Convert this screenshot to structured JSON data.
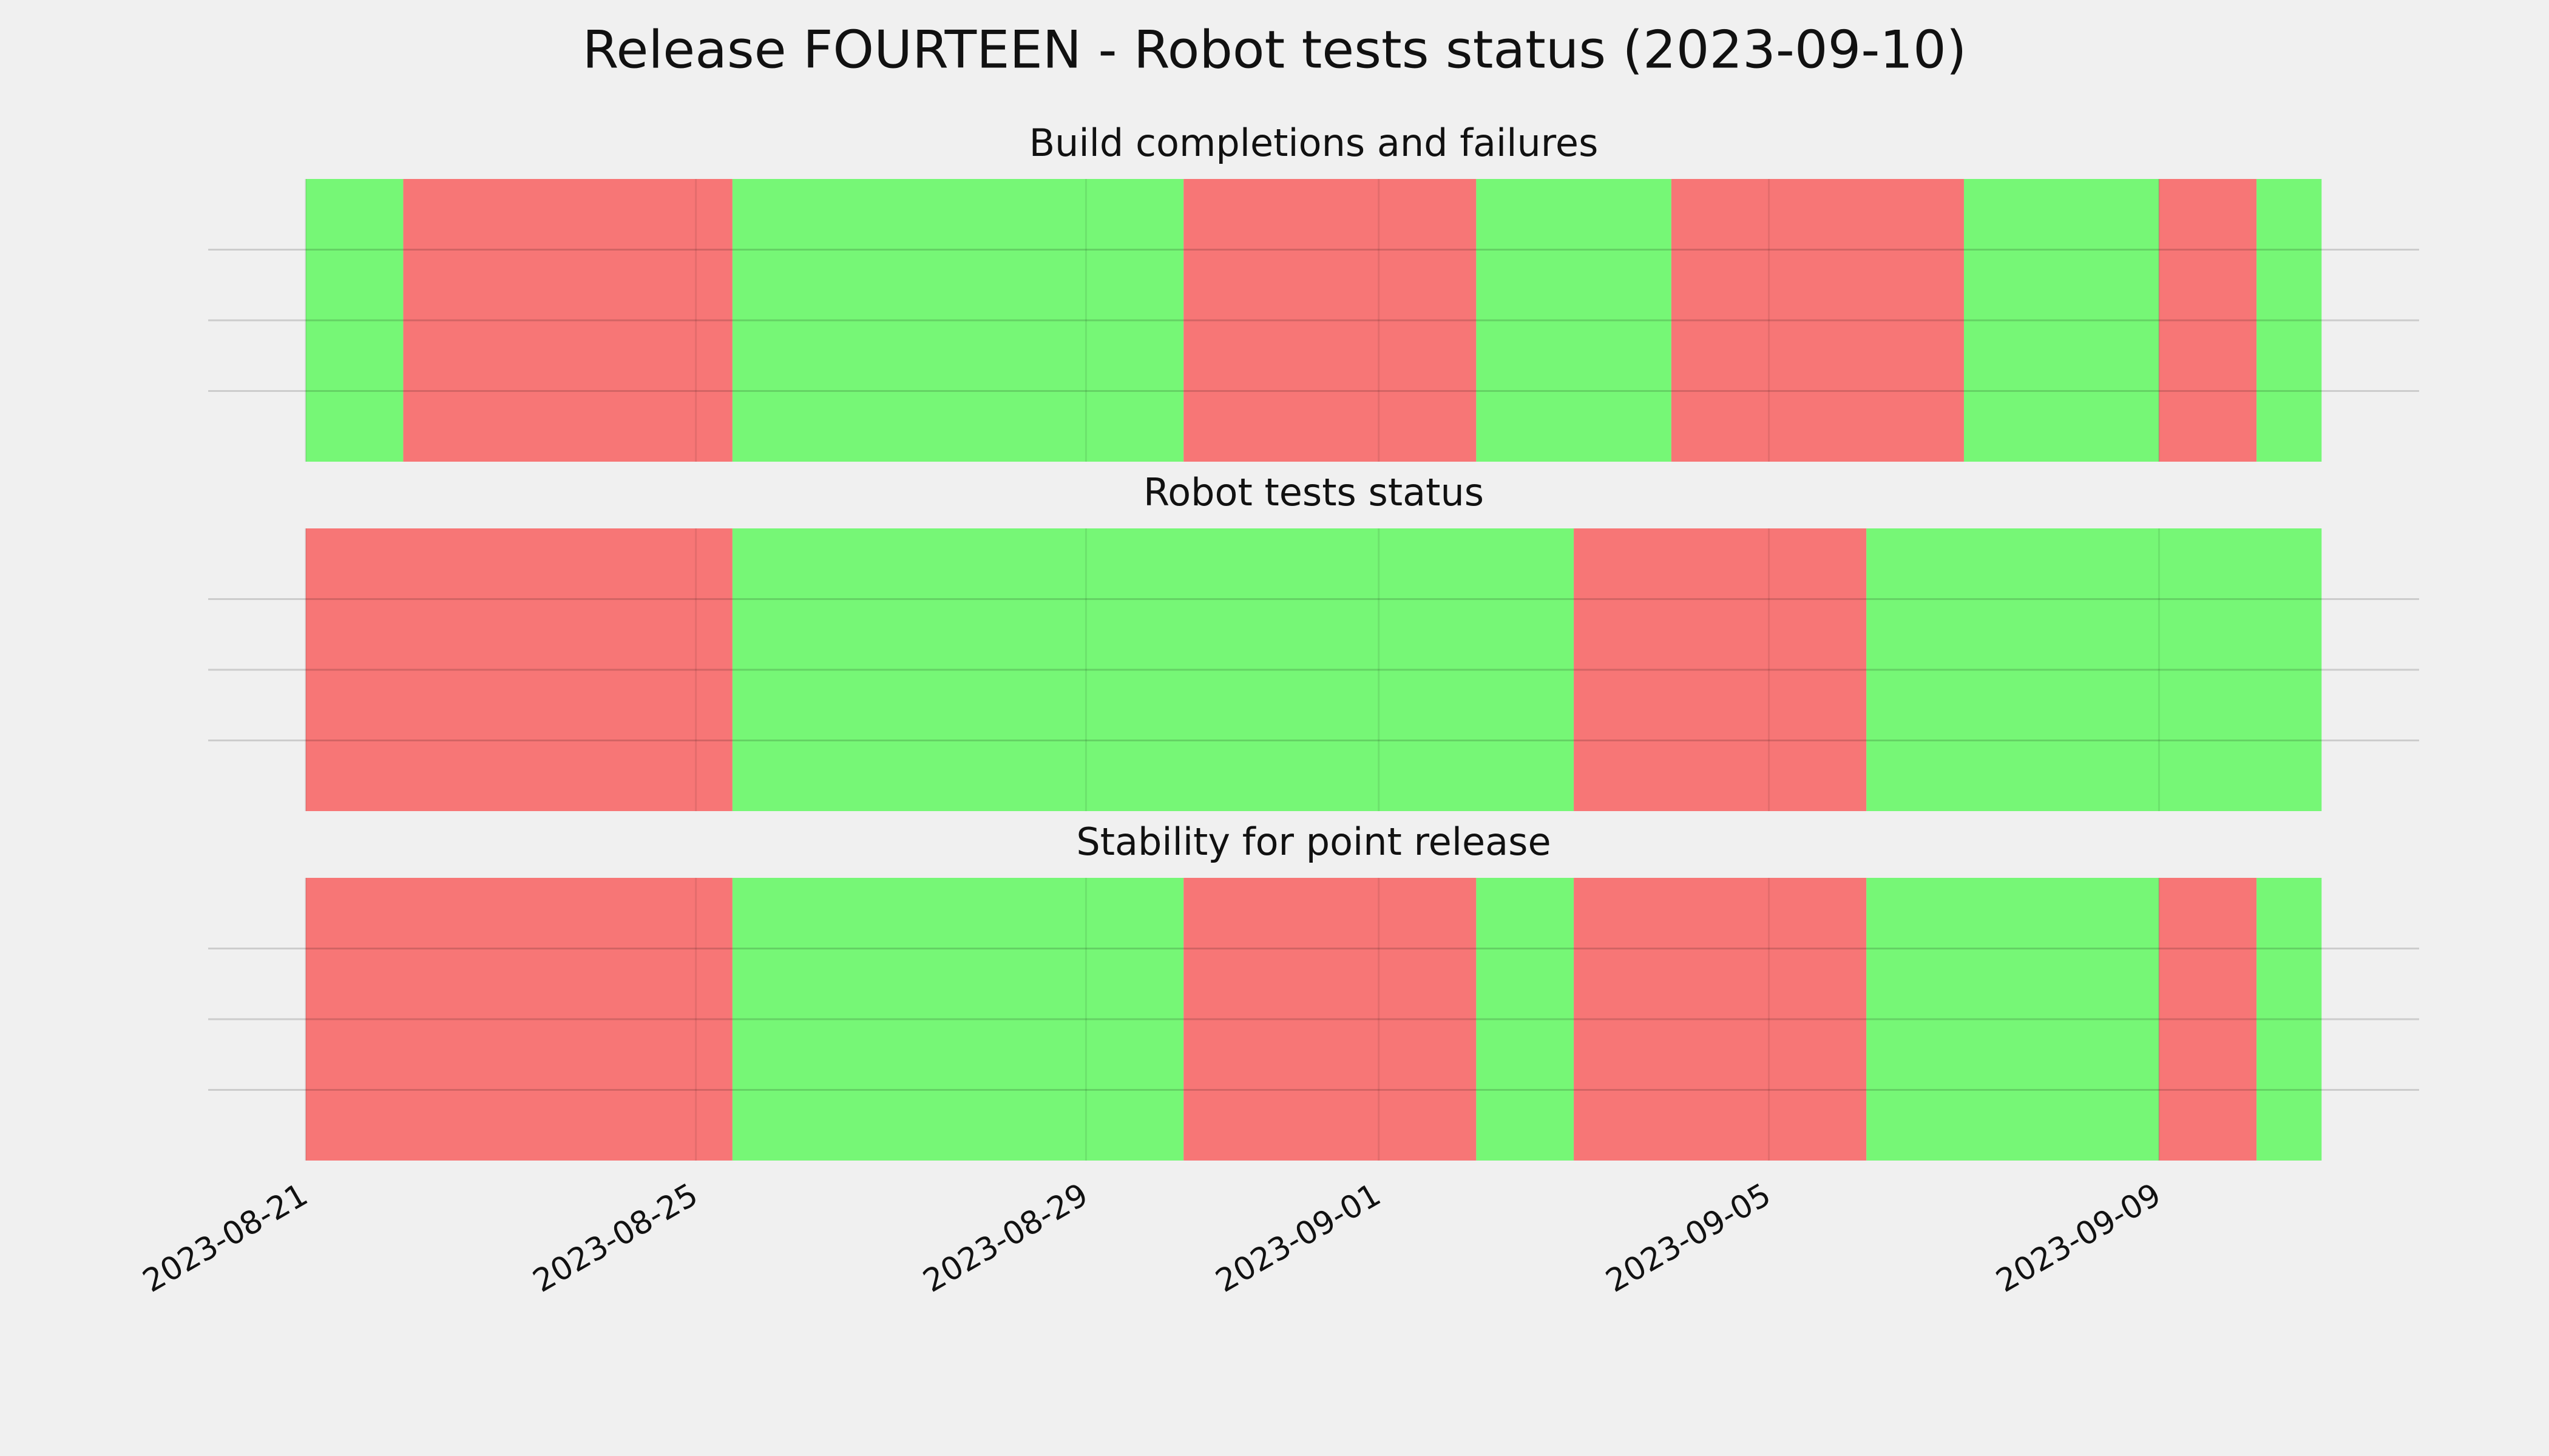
{
  "title": "Release FOURTEEN - Robot tests status (2023-09-10)",
  "chart_data": [
    {
      "type": "span",
      "title": "Build completions and failures",
      "xlim": [
        "2023-08-20T00:00",
        "2023-09-11T16:00"
      ],
      "ylim": [
        0,
        1
      ],
      "yticks": [
        0.25,
        0.5,
        0.75
      ],
      "grid": true,
      "spans": [
        {
          "start": "2023-08-21T00:00",
          "end": "2023-08-22T00:00",
          "color": "#76f776"
        },
        {
          "start": "2023-08-22T00:00",
          "end": "2023-08-25T09:00",
          "color": "#f77676"
        },
        {
          "start": "2023-08-25T09:00",
          "end": "2023-08-30T00:00",
          "color": "#76f776"
        },
        {
          "start": "2023-08-30T00:00",
          "end": "2023-09-02T00:00",
          "color": "#f77676"
        },
        {
          "start": "2023-09-02T00:00",
          "end": "2023-09-04T00:00",
          "color": "#76f776"
        },
        {
          "start": "2023-09-04T00:00",
          "end": "2023-09-07T00:00",
          "color": "#f77676"
        },
        {
          "start": "2023-09-07T00:00",
          "end": "2023-09-09T00:00",
          "color": "#76f776"
        },
        {
          "start": "2023-09-09T00:00",
          "end": "2023-09-10T00:00",
          "color": "#f77676"
        },
        {
          "start": "2023-09-10T00:00",
          "end": "2023-09-10T16:00",
          "color": "#76f776"
        }
      ]
    },
    {
      "type": "span",
      "title": "Robot tests status",
      "xlim": [
        "2023-08-20T00:00",
        "2023-09-11T16:00"
      ],
      "ylim": [
        0,
        1
      ],
      "yticks": [
        0.25,
        0.5,
        0.75
      ],
      "grid": true,
      "spans": [
        {
          "start": "2023-08-21T00:00",
          "end": "2023-08-25T09:00",
          "color": "#f77676"
        },
        {
          "start": "2023-08-25T09:00",
          "end": "2023-09-03T00:00",
          "color": "#76f776"
        },
        {
          "start": "2023-09-03T00:00",
          "end": "2023-09-06T00:00",
          "color": "#f77676"
        },
        {
          "start": "2023-09-06T00:00",
          "end": "2023-09-10T16:00",
          "color": "#76f776"
        }
      ]
    },
    {
      "type": "span",
      "title": "Stability for point release",
      "xlim": [
        "2023-08-20T00:00",
        "2023-09-11T16:00"
      ],
      "ylim": [
        0,
        1
      ],
      "yticks": [
        0.25,
        0.5,
        0.75
      ],
      "grid": true,
      "xticks": [
        "2023-08-21",
        "2023-08-25",
        "2023-08-29",
        "2023-09-01",
        "2023-09-05",
        "2023-09-09"
      ],
      "spans": [
        {
          "start": "2023-08-21T00:00",
          "end": "2023-08-25T09:00",
          "color": "#f77676"
        },
        {
          "start": "2023-08-25T09:00",
          "end": "2023-08-30T00:00",
          "color": "#76f776"
        },
        {
          "start": "2023-08-30T00:00",
          "end": "2023-09-02T00:00",
          "color": "#f77676"
        },
        {
          "start": "2023-09-02T00:00",
          "end": "2023-09-03T00:00",
          "color": "#76f776"
        },
        {
          "start": "2023-09-03T00:00",
          "end": "2023-09-06T00:00",
          "color": "#f77676"
        },
        {
          "start": "2023-09-06T00:00",
          "end": "2023-09-09T00:00",
          "color": "#76f776"
        },
        {
          "start": "2023-09-09T00:00",
          "end": "2023-09-10T00:00",
          "color": "#f77676"
        },
        {
          "start": "2023-09-10T00:00",
          "end": "2023-09-10T16:00",
          "color": "#76f776"
        }
      ]
    }
  ]
}
